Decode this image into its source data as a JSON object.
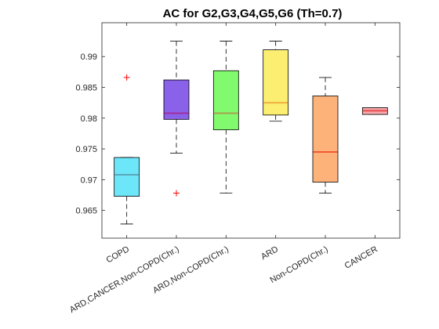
{
  "chart_data": {
    "type": "box",
    "title": "AC for G2,G3,G4,G5,G6 (Th=0.7)",
    "xlabel": "",
    "ylabel": "",
    "ylim": [
      0.9605,
      0.9955
    ],
    "yticks": [
      0.965,
      0.97,
      0.975,
      0.98,
      0.985,
      0.99
    ],
    "ytick_labels": [
      "0.965",
      "0.97",
      "0.975",
      "0.98",
      "0.985",
      "0.99"
    ],
    "grid": false,
    "categories": [
      "COPD",
      "ARD,CANCER,Non-COPD(Chr.)",
      "ARD,Non-COPD(Chr.)",
      "ARD",
      "Non-COPD(Chr.)",
      "CANCER"
    ],
    "boxes": [
      {
        "category": "COPD",
        "whisker_low": 0.9628,
        "q1": 0.9673,
        "median": 0.9708,
        "q3": 0.9736,
        "whisker_high": 0.9736,
        "outliers": [
          0.9866
        ],
        "fill": "#6ee6fa",
        "median_color": "#5aa6b8"
      },
      {
        "category": "ARD,CANCER,Non-COPD(Chr.)",
        "whisker_low": 0.9743,
        "q1": 0.9798,
        "median": 0.9808,
        "q3": 0.9862,
        "whisker_high": 0.9925,
        "outliers": [
          0.9678
        ],
        "fill": "#8a62ea",
        "median_color": "#a02ea0"
      },
      {
        "category": "ARD,Non-COPD(Chr.)",
        "whisker_low": 0.9678,
        "q1": 0.9781,
        "median": 0.9808,
        "q3": 0.9877,
        "whisker_high": 0.9925,
        "outliers": [],
        "fill": "#82fa6e",
        "median_color": "#a8a050"
      },
      {
        "category": "ARD",
        "whisker_low": 0.9795,
        "q1": 0.9805,
        "median": 0.9825,
        "q3": 0.9911,
        "whisker_high": 0.9925,
        "outliers": [],
        "fill": "#fbee70",
        "median_color": "#f0b040"
      },
      {
        "category": "Non-COPD(Chr.)",
        "whisker_low": 0.9678,
        "q1": 0.9696,
        "median": 0.9745,
        "q3": 0.9836,
        "whisker_high": 0.9866,
        "outliers": [],
        "fill": "#fdb27a",
        "median_color": "#f05a30"
      },
      {
        "category": "CANCER",
        "whisker_low": 0.9806,
        "q1": 0.9806,
        "median": 0.9812,
        "q3": 0.9817,
        "whisker_high": 0.9817,
        "outliers": [],
        "fill": "#f7aab0",
        "median_color": "#e84a4a"
      }
    ],
    "outlier_color": "#ff0000",
    "outlier_marker": "+"
  }
}
